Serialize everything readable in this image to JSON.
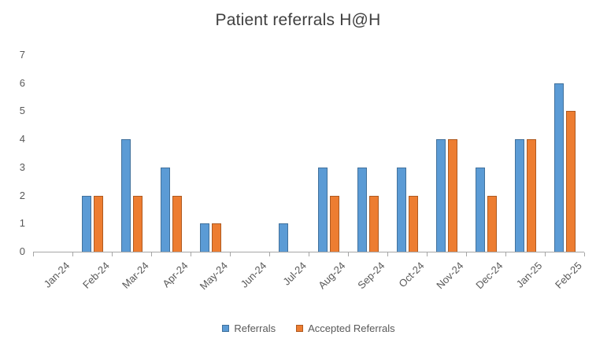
{
  "chart_data": {
    "type": "bar",
    "title": "Patient referrals H@H",
    "categories": [
      "Jan-24",
      "Feb-24",
      "Mar-24",
      "Apr-24",
      "May-24",
      "Jun-24",
      "Jul-24",
      "Aug-24",
      "Sep-24",
      "Oct-24",
      "Nov-24",
      "Dec-24",
      "Jan-25",
      "Feb-25"
    ],
    "series": [
      {
        "name": "Referrals",
        "color": "#5B9BD5",
        "border_color": "#41719C",
        "values": [
          0,
          2,
          4,
          3,
          1,
          0,
          1,
          3,
          3,
          3,
          4,
          3,
          4,
          6
        ]
      },
      {
        "name": "Accepted Referrals",
        "color": "#ED7D31",
        "border_color": "#AE5A21",
        "values": [
          0,
          2,
          2,
          2,
          1,
          0,
          0,
          2,
          2,
          2,
          4,
          2,
          4,
          5
        ]
      }
    ],
    "xlabel": "",
    "ylabel": "",
    "ylim": [
      0,
      7
    ],
    "yticks": [
      0,
      1,
      2,
      3,
      4,
      5,
      6,
      7
    ],
    "grid": false,
    "legend_position": "bottom",
    "axis_line_color": "#a6a6a6",
    "label_color": "#595959",
    "title_color": "#404040"
  }
}
